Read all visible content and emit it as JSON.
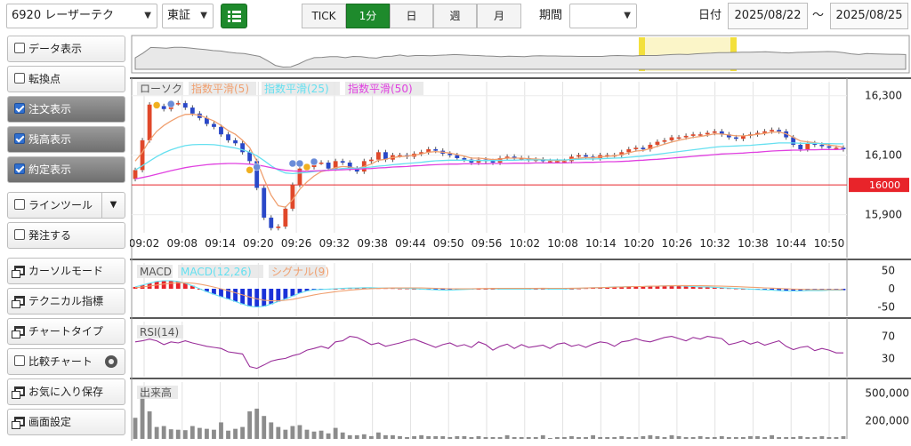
{
  "toolbar": {
    "stock": "6920 レーザーテク",
    "market": "東証",
    "intervals": [
      {
        "label": "TICK",
        "active": false
      },
      {
        "label": "1分",
        "active": true
      },
      {
        "label": "日",
        "active": false
      },
      {
        "label": "週",
        "active": false
      },
      {
        "label": "月",
        "active": false
      }
    ],
    "period_label": "期間",
    "period_value": "",
    "date_label": "日付",
    "date_from": "2025/08/22",
    "date_sep": "～",
    "date_to": "2025/08/25"
  },
  "sidebar": {
    "items": [
      {
        "label": "データ表示",
        "kind": "check",
        "checked": false
      },
      {
        "label": "転換点",
        "kind": "check",
        "checked": false
      },
      {
        "label": "注文表示",
        "kind": "check",
        "checked": true
      },
      {
        "label": "残高表示",
        "kind": "check",
        "checked": true
      },
      {
        "label": "約定表示",
        "kind": "check",
        "checked": true
      },
      {
        "label": "ラインツール",
        "kind": "check-dropdown",
        "checked": false
      },
      {
        "label": "発注する",
        "kind": "check",
        "checked": false
      },
      {
        "label": "カーソルモード",
        "kind": "window"
      },
      {
        "label": "テクニカル指標",
        "kind": "window"
      },
      {
        "label": "チャートタイプ",
        "kind": "window"
      },
      {
        "label": "比較チャート",
        "kind": "check-gear",
        "checked": false
      },
      {
        "label": "お気に入り保存",
        "kind": "window"
      },
      {
        "label": "画面設定",
        "kind": "window"
      }
    ]
  },
  "chart_data": [
    {
      "type": "candlestick",
      "legend": [
        {
          "name": "ローソク",
          "color": "#888888"
        },
        {
          "name": "指数平滑(5)",
          "color": "#f0a070"
        },
        {
          "name": "指数平滑(25)",
          "color": "#66e0f0"
        },
        {
          "name": "指数平滑(50)",
          "color": "#e040e0"
        }
      ],
      "y_ticks": [
        "16,300",
        "16,100",
        "15,900"
      ],
      "ylim": [
        15845,
        16335
      ],
      "price_line": {
        "value": 16000,
        "label": "16000",
        "color": "#e8242a"
      },
      "x_ticks": [
        "09:02",
        "09:08",
        "09:14",
        "09:20",
        "09:26",
        "09:32",
        "09:38",
        "09:44",
        "09:50",
        "09:56",
        "10:02",
        "10:08",
        "10:14",
        "10:20",
        "10:26",
        "10:32",
        "10:38",
        "10:44",
        "10:50"
      ],
      "close": [
        16050,
        16150,
        16270,
        16265,
        16255,
        16275,
        16275,
        16260,
        16240,
        16225,
        16205,
        16195,
        16170,
        16150,
        16140,
        16110,
        16080,
        15990,
        15890,
        15855,
        15860,
        15920,
        16000,
        16055,
        16060,
        16075,
        16075,
        16055,
        16080,
        16075,
        16055,
        16045,
        16080,
        16085,
        16110,
        16085,
        16100,
        16100,
        16095,
        16105,
        16110,
        16120,
        16115,
        16105,
        16100,
        16090,
        16085,
        16075,
        16085,
        16080,
        16075,
        16090,
        16095,
        16090,
        16090,
        16085,
        16085,
        16080,
        16080,
        16080,
        16080,
        16095,
        16100,
        16095,
        16090,
        16100,
        16100,
        16100,
        16110,
        16120,
        16125,
        16120,
        16135,
        16145,
        16150,
        16160,
        16160,
        16165,
        16170,
        16170,
        16175,
        16180,
        16170,
        16160,
        16155,
        16165,
        16170,
        16175,
        16180,
        16185,
        16180,
        16160,
        16135,
        16120,
        16140,
        16135,
        16130,
        16125,
        16125,
        16120
      ],
      "ema_5": [
        16080,
        16110,
        16150,
        16180,
        16200,
        16215,
        16228,
        16237,
        16238,
        16234,
        16225,
        16215,
        16200,
        16183,
        16170,
        16150,
        16125,
        16080,
        16020,
        15965,
        15930,
        15925,
        15950,
        15985,
        16010,
        16030,
        16045,
        16050,
        16058,
        16062,
        16060,
        16055,
        16062,
        16070,
        16083,
        16086,
        16092,
        16095,
        16097,
        16100,
        16104,
        16110,
        16112,
        16110,
        16107,
        16102,
        16097,
        16090,
        16090,
        16088,
        16085,
        16087,
        16090,
        16090,
        16090,
        16088,
        16087,
        16085,
        16083,
        16082,
        16082,
        16087,
        16090,
        16092,
        16091,
        16094,
        16096,
        16098,
        16102,
        16108,
        16114,
        16116,
        16122,
        16130,
        16137,
        16144,
        16150,
        16155,
        16160,
        16163,
        16167,
        16172,
        16171,
        16168,
        16165,
        16165,
        16167,
        16170,
        16173,
        16177,
        16178,
        16172,
        16160,
        16148,
        16145,
        16142,
        16138,
        16134,
        16131,
        16127
      ],
      "ema_25": [
        16050,
        16065,
        16080,
        16095,
        16108,
        16118,
        16126,
        16132,
        16135,
        16136,
        16136,
        16135,
        16132,
        16128,
        16124,
        16118,
        16110,
        16098,
        16082,
        16064,
        16050,
        16040,
        16038,
        16040,
        16042,
        16045,
        16048,
        16050,
        16053,
        16055,
        16056,
        16056,
        16058,
        16060,
        16063,
        16065,
        16068,
        16070,
        16072,
        16074,
        16076,
        16079,
        16081,
        16082,
        16083,
        16083,
        16083,
        16082,
        16082,
        16082,
        16082,
        16082,
        16083,
        16083,
        16084,
        16084,
        16084,
        16084,
        16084,
        16084,
        16084,
        16085,
        16086,
        16087,
        16087,
        16088,
        16089,
        16090,
        16091,
        16093,
        16095,
        16097,
        16100,
        16103,
        16106,
        16109,
        16112,
        16115,
        16118,
        16121,
        16124,
        16127,
        16129,
        16130,
        16131,
        16132,
        16133,
        16135,
        16137,
        16139,
        16141,
        16141,
        16141,
        16140,
        16140,
        16140,
        16139,
        16139,
        16138,
        16138
      ],
      "ema_50": [
        16020,
        16025,
        16030,
        16036,
        16042,
        16048,
        16053,
        16058,
        16062,
        16065,
        16068,
        16070,
        16071,
        16072,
        16072,
        16071,
        16070,
        16067,
        16063,
        16058,
        16053,
        16049,
        16047,
        16046,
        16046,
        16047,
        16048,
        16049,
        16050,
        16051,
        16052,
        16053,
        16054,
        16055,
        16057,
        16058,
        16060,
        16061,
        16062,
        16064,
        16065,
        16067,
        16068,
        16069,
        16070,
        16070,
        16071,
        16071,
        16071,
        16071,
        16072,
        16072,
        16072,
        16073,
        16073,
        16073,
        16074,
        16074,
        16074,
        16074,
        16074,
        16075,
        16075,
        16076,
        16076,
        16077,
        16078,
        16078,
        16079,
        16080,
        16082,
        16083,
        16085,
        16086,
        16088,
        16090,
        16092,
        16094,
        16096,
        16098,
        16100,
        16102,
        16104,
        16105,
        16106,
        16107,
        16109,
        16110,
        16112,
        16114,
        16115,
        16116,
        16117,
        16117,
        16118,
        16118,
        16119,
        16119,
        16119,
        16120
      ]
    },
    {
      "type": "bar",
      "legend": [
        {
          "name": "MACD",
          "color": "#888888"
        },
        {
          "name": "MACD(12,26)",
          "color": "#66e0f0"
        },
        {
          "name": "シグナル(9)",
          "color": "#f0a070"
        }
      ],
      "y_ticks": [
        "50",
        "0",
        "-50"
      ],
      "ylim": [
        -70,
        70
      ],
      "histogram": [
        5,
        10,
        15,
        20,
        22,
        22,
        20,
        15,
        8,
        0,
        -8,
        -15,
        -22,
        -28,
        -35,
        -42,
        -48,
        -50,
        -48,
        -42,
        -35,
        -28,
        -20,
        -12,
        -6,
        -3,
        -2,
        -1,
        0,
        1,
        2,
        2,
        3,
        3,
        2,
        2,
        2,
        1,
        1,
        0,
        -1,
        -2,
        -3,
        -4,
        -4,
        -3,
        -2,
        -1,
        0,
        0,
        0,
        -1,
        -1,
        -1,
        -1,
        -1,
        0,
        0,
        -1,
        -1,
        -1,
        0,
        1,
        2,
        3,
        3,
        4,
        5,
        5,
        6,
        6,
        6,
        7,
        7,
        8,
        8,
        8,
        7,
        6,
        5,
        5,
        4,
        3,
        2,
        1,
        0,
        -1,
        -2,
        -3,
        -4,
        -5,
        -6,
        -6,
        -6,
        -5,
        -5,
        -5,
        -4,
        -4,
        -4
      ]
    },
    {
      "type": "line",
      "legend": [
        {
          "name": "RSI(14)",
          "color": "#9a2f9a"
        }
      ],
      "y_ticks": [
        "70",
        "30"
      ],
      "ylim": [
        0,
        100
      ],
      "values": [
        60,
        62,
        65,
        62,
        55,
        60,
        58,
        62,
        58,
        55,
        52,
        50,
        48,
        42,
        40,
        38,
        15,
        12,
        18,
        25,
        28,
        30,
        35,
        38,
        45,
        48,
        52,
        48,
        60,
        62,
        70,
        68,
        62,
        55,
        58,
        52,
        55,
        58,
        62,
        65,
        60,
        55,
        50,
        55,
        58,
        52,
        55,
        50,
        60,
        55,
        45,
        52,
        56,
        48,
        55,
        50,
        52,
        54,
        48,
        56,
        58,
        52,
        55,
        50,
        56,
        60,
        58,
        52,
        60,
        62,
        66,
        62,
        60,
        64,
        68,
        70,
        66,
        62,
        68,
        65,
        70,
        68,
        66,
        55,
        58,
        62,
        56,
        60,
        54,
        58,
        62,
        52,
        46,
        50,
        52,
        44,
        48,
        45,
        40,
        40
      ]
    },
    {
      "type": "bar",
      "legend": [
        {
          "name": "出来高",
          "color": "#888888"
        }
      ],
      "y_ticks": [
        "500,000",
        "200,000"
      ],
      "ylim": [
        0,
        620000
      ],
      "values": [
        230000,
        560000,
        300000,
        130000,
        140000,
        105000,
        100000,
        95000,
        140000,
        120000,
        110000,
        100000,
        180000,
        90000,
        110000,
        130000,
        300000,
        330000,
        250000,
        180000,
        130000,
        100000,
        140000,
        150000,
        100000,
        80000,
        90000,
        60000,
        120000,
        70000,
        40000,
        40000,
        50000,
        30000,
        70000,
        40000,
        40000,
        30000,
        20000,
        30000,
        40000,
        30000,
        30000,
        30000,
        20000,
        30000,
        30000,
        20000,
        30000,
        20000,
        20000,
        20000,
        40000,
        20000,
        20000,
        20000,
        20000,
        40000,
        10000,
        20000,
        20000,
        30000,
        20000,
        20000,
        40000,
        20000,
        20000,
        20000,
        30000,
        20000,
        20000,
        30000,
        40000,
        30000,
        20000,
        40000,
        30000,
        20000,
        20000,
        30000,
        20000,
        20000,
        30000,
        20000,
        20000,
        20000,
        30000,
        30000,
        20000,
        40000,
        20000,
        20000,
        20000,
        30000,
        20000,
        20000,
        30000,
        20000,
        20000,
        30000
      ]
    }
  ]
}
